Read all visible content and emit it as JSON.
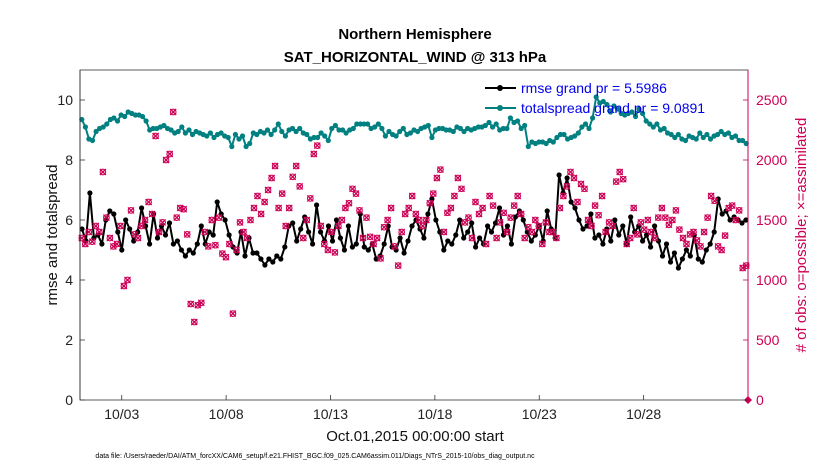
{
  "chart_data": {
    "type": "line",
    "title": "Northern Hemisphere",
    "subtitle": "SAT_HORIZONTAL_WIND @ 313 hPa",
    "xlabel": "Oct.01,2015 00:00:00 start",
    "ylabel": "rmse and totalspread",
    "ylabel_right": "# of obs: o=possible; ×=assimilated",
    "footer": "data file: /Users/raeder/DAI/ATM_forcXX/CAM6_setup/f.e21.FHIST_BGC.f09_025.CAM6assim.011/Diags_NTrS_2015-10/obs_diag_output.nc",
    "x_range_days": [
      1.0,
      33.0
    ],
    "ylim": [
      0,
      11
    ],
    "ylim_right": [
      0,
      2750
    ],
    "x_tick_positions_days": [
      3,
      8,
      13,
      18,
      23,
      28
    ],
    "x_tick_labels": [
      "10/03",
      "10/08",
      "10/13",
      "10/18",
      "10/23",
      "10/28"
    ],
    "y_ticks": [
      "0",
      "2",
      "4",
      "6",
      "8",
      "10"
    ],
    "y_ticks_right": [
      "0",
      "500",
      "1000",
      "1500",
      "2000",
      "2500"
    ],
    "colors": {
      "rmse": "#000000",
      "spread": "#008080",
      "obs": "#cc0055"
    },
    "series": [
      {
        "name": "rmse",
        "legend": "rmse grand pr = 5.5986",
        "values": [
          5.7,
          5.3,
          6.9,
          5.4,
          5.5,
          5.2,
          6.0,
          6.3,
          6.2,
          5.6,
          5.0,
          6.0,
          5.7,
          5.3,
          5.6,
          6.4,
          5.8,
          5.2,
          6.2,
          5.4,
          5.8,
          5.5,
          5.9,
          5.2,
          5.3,
          5.0,
          4.8,
          5.0,
          4.9,
          5.2,
          5.8,
          5.2,
          5.6,
          5.5,
          6.6,
          6.2,
          6.0,
          5.5,
          5.1,
          4.9,
          5.6,
          4.8,
          5.4,
          4.9,
          4.9,
          4.7,
          4.5,
          4.7,
          4.6,
          4.8,
          4.7,
          5.1,
          5.8,
          5.9,
          5.3,
          5.7,
          6.1,
          5.6,
          5.2,
          6.5,
          5.6,
          5.3,
          5.8,
          5.3,
          6.0,
          5.4,
          5.0,
          5.8,
          5.1,
          5.2,
          6.2,
          5.1,
          5.0,
          5.2,
          4.7,
          4.8,
          5.2,
          5.8,
          5.1,
          5.0,
          5.4,
          4.9,
          5.3,
          5.8,
          6.0,
          5.7,
          5.4,
          6.2,
          6.7,
          6.0,
          5.6,
          5.0,
          5.3,
          5.2,
          5.5,
          6.0,
          5.4,
          5.6,
          5.9,
          5.1,
          5.4,
          5.2,
          5.8,
          5.6,
          5.9,
          6.4,
          5.5,
          5.8,
          5.2,
          6.1,
          6.3,
          6.0,
          5.6,
          5.3,
          5.5,
          5.8,
          5.3,
          6.3,
          5.7,
          5.4,
          7.5,
          6.9,
          7.4,
          6.6,
          6.4,
          6.0,
          5.7,
          5.8,
          6.2,
          5.4,
          5.5,
          5.2,
          5.7,
          5.3,
          6.0,
          5.5,
          5.8,
          5.2,
          6.1,
          5.6,
          5.8,
          5.3,
          5.5,
          5.1,
          5.8,
          5.3,
          4.8,
          5.2,
          4.6,
          4.9,
          4.4,
          4.7,
          5.0,
          4.8,
          5.5,
          4.7,
          4.6,
          5.0,
          5.2,
          5.6,
          6.7,
          6.2,
          6.3,
          6.0,
          6.1,
          6.0,
          5.9,
          6.0
        ]
      },
      {
        "name": "totalspread",
        "legend": "totalspread grand pr = 9.0891",
        "values": [
          9.35,
          9.1,
          8.7,
          8.65,
          8.95,
          9.05,
          9.1,
          9.2,
          9.35,
          9.4,
          9.3,
          9.5,
          9.45,
          9.6,
          9.55,
          9.5,
          9.5,
          9.45,
          9.3,
          9.0,
          9.05,
          9.05,
          9.1,
          9.15,
          9.05,
          9.0,
          8.9,
          8.95,
          9.1,
          8.9,
          9.0,
          8.85,
          8.95,
          8.9,
          8.85,
          8.8,
          8.9,
          8.75,
          8.85,
          8.9,
          8.8,
          8.75,
          8.45,
          8.85,
          8.7,
          8.8,
          8.45,
          8.55,
          8.9,
          8.85,
          8.95,
          8.9,
          9.0,
          8.85,
          9.0,
          9.2,
          8.95,
          8.8,
          9.0,
          9.05,
          8.95,
          9.05,
          8.9,
          8.85,
          8.7,
          8.75,
          8.75,
          8.9,
          8.8,
          8.65,
          9.05,
          9.15,
          9.0,
          9.0,
          8.9,
          9.0,
          9.05,
          9.2,
          9.2,
          9.2,
          9.2,
          9.05,
          9.1,
          9.2,
          9.05,
          8.8,
          8.95,
          8.85,
          8.8,
          8.95,
          9.05,
          8.85,
          8.9,
          9.0,
          8.95,
          9.05,
          9.1,
          9.15,
          8.75,
          9.0,
          9.05,
          9.05,
          9.0,
          9.0,
          8.95,
          9.1,
          9.05,
          8.95,
          9.05,
          9.0,
          9.05,
          9.1,
          9.1,
          9.15,
          9.25,
          9.1,
          9.2,
          9.0,
          9.05,
          9.05,
          9.4,
          9.25,
          9.3,
          9.05,
          9.15,
          8.45,
          8.6,
          8.55,
          8.6,
          8.6,
          8.55,
          8.65,
          8.6,
          8.75,
          8.85,
          8.85,
          8.7,
          8.75,
          8.8,
          8.9,
          9.1,
          9.2,
          9.05,
          9.4,
          10.1,
          9.9,
          9.95,
          9.85,
          9.6,
          9.8,
          9.7,
          9.55,
          9.5,
          9.55,
          9.6,
          9.45,
          9.7,
          9.55,
          9.3,
          9.2,
          9.1,
          9.2,
          9.0,
          9.05,
          8.9,
          8.85,
          8.75,
          8.85,
          8.7,
          8.65,
          8.8,
          8.75,
          8.7,
          8.9,
          8.75,
          8.85,
          8.7,
          8.8,
          8.85,
          8.95,
          8.85,
          8.9,
          8.75,
          8.8,
          8.65,
          8.65,
          8.55
        ]
      },
      {
        "name": "obs count",
        "values": [
          1350,
          1300,
          1400,
          1320,
          1450,
          1400,
          1900,
          1520,
          1350,
          1280,
          1300,
          1450,
          950,
          1000,
          1580,
          1380,
          1350,
          1450,
          1500,
          1650,
          1550,
          2200,
          1400,
          1480,
          2000,
          2050,
          2400,
          1520,
          1600,
          1590,
          1380,
          800,
          650,
          790,
          810,
          1400,
          1280,
          1500,
          1290,
          1520,
          1220,
          1190,
          1300,
          720,
          1250,
          1480,
          1400,
          1350,
          1500,
          1600,
          1700,
          1550,
          1650,
          1750,
          1850,
          1950,
          1600,
          1720,
          1450,
          1600,
          1860,
          1950,
          1780,
          1350,
          1500,
          1680,
          2050,
          2120,
          1450,
          1300,
          1250,
          1400,
          1230,
          1450,
          1500,
          1600,
          1640,
          1760,
          1720,
          1580,
          1350,
          1520,
          1360,
          1300,
          1350,
          1180,
          1440,
          1500,
          1600,
          1280,
          1120,
          1400,
          1550,
          1600,
          1700,
          1550,
          1500,
          1450,
          1500,
          1640,
          1720,
          1850,
          1920,
          1400,
          1560,
          1600,
          1700,
          1850,
          1760,
          1480,
          1520,
          1350,
          1650,
          1550,
          1600,
          1300,
          1700,
          1620,
          1350,
          1480,
          1560,
          1400,
          1520,
          1620,
          1700,
          1550,
          1350,
          1440,
          1400,
          1500,
          1450,
          1300,
          1480,
          1400,
          1400,
          1350,
          1600,
          1700,
          1780,
          1900,
          1850,
          1650,
          1800,
          1760,
          1500,
          1450,
          1620,
          1540,
          1700,
          1400,
          1480,
          1450,
          1820,
          1900,
          1840,
          1300,
          1350,
          1600,
          1380,
          1480,
          1420,
          1500,
          1400,
          1350,
          1520,
          1600,
          1520,
          1460,
          1500,
          1580,
          1420,
          1350,
          1300,
          1380,
          1400,
          1330,
          1280,
          1400,
          1520,
          1700,
          1660,
          1280,
          1250,
          1370,
          1600,
          1620,
          1500,
          1580,
          1100,
          1120
        ]
      }
    ]
  }
}
